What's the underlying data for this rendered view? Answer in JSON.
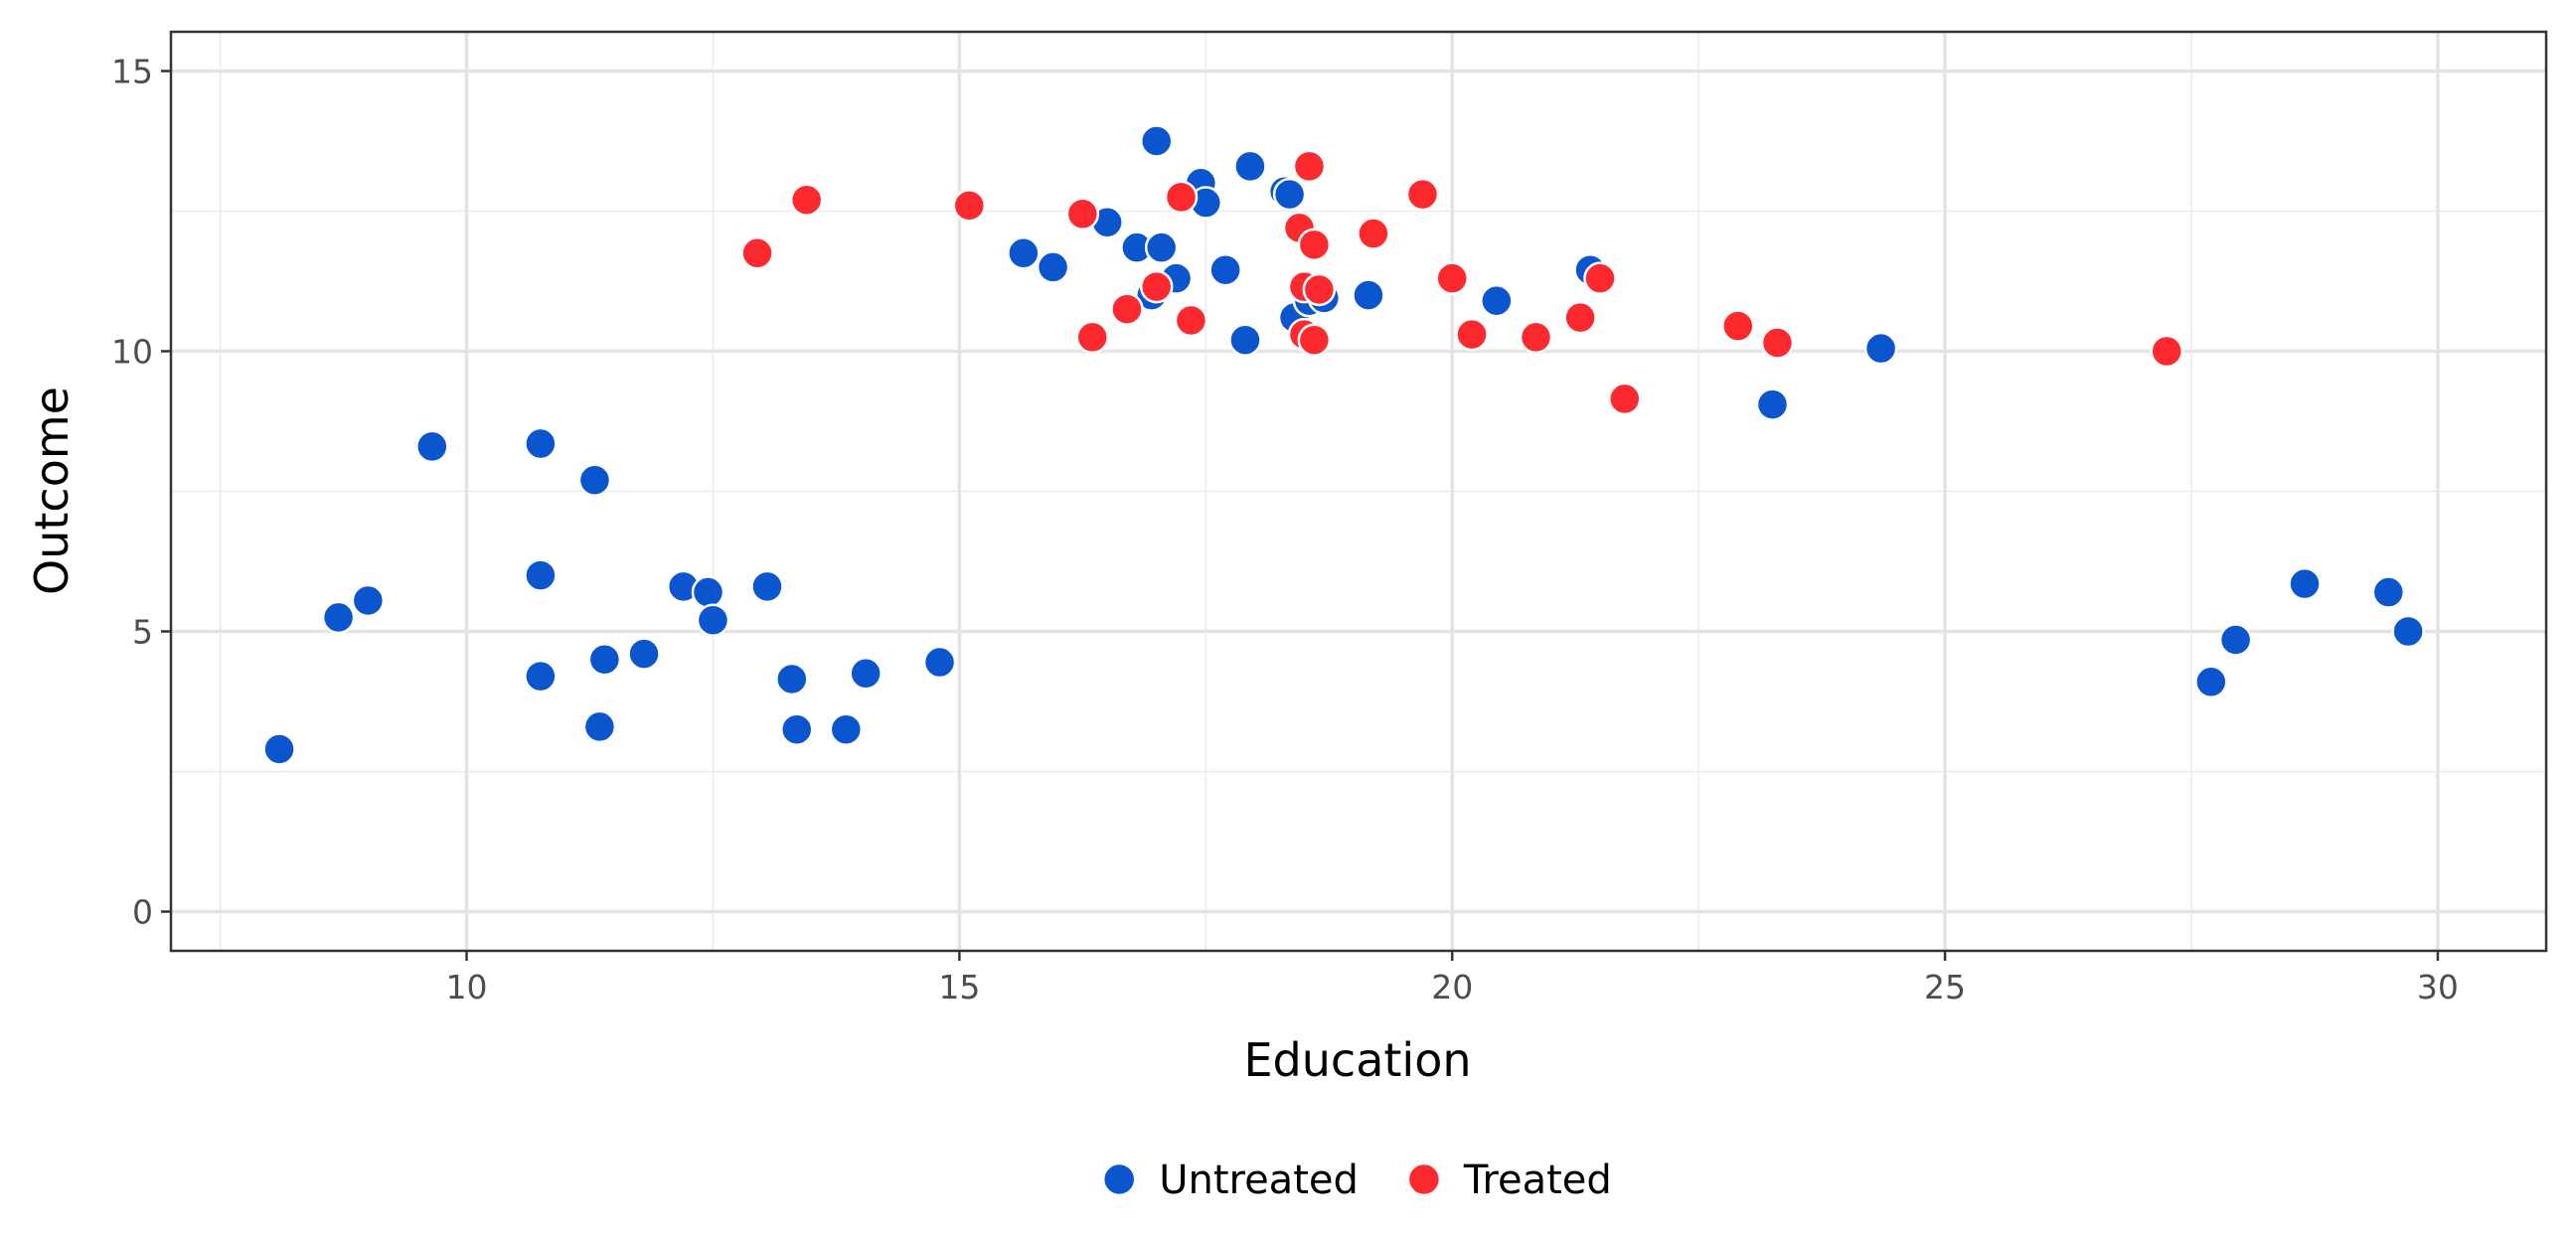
{
  "chart_data": {
    "type": "scatter",
    "title": "",
    "xlabel": "Education",
    "ylabel": "Outcome",
    "xlim": [
      7.0,
      31.1
    ],
    "ylim": [
      -0.7,
      15.7
    ],
    "xticks": [
      "10",
      "15",
      "20",
      "25",
      "30"
    ],
    "yticks": [
      "0",
      "5",
      "10",
      "15"
    ],
    "grid": true,
    "legend_position": "bottom",
    "series": [
      {
        "name": "Untreated",
        "color": "#0b56cf",
        "points": [
          [
            8.1,
            2.9
          ],
          [
            8.7,
            5.25
          ],
          [
            9.0,
            5.55
          ],
          [
            9.65,
            8.3
          ],
          [
            10.75,
            8.35
          ],
          [
            10.75,
            6.0
          ],
          [
            10.75,
            4.2
          ],
          [
            11.3,
            7.7
          ],
          [
            11.35,
            3.3
          ],
          [
            11.4,
            4.5
          ],
          [
            11.8,
            4.6
          ],
          [
            12.2,
            5.8
          ],
          [
            12.45,
            5.7
          ],
          [
            12.5,
            5.2
          ],
          [
            13.05,
            5.8
          ],
          [
            13.3,
            4.15
          ],
          [
            13.35,
            3.25
          ],
          [
            13.85,
            3.25
          ],
          [
            14.05,
            4.25
          ],
          [
            14.8,
            4.45
          ],
          [
            15.65,
            11.75
          ],
          [
            15.95,
            11.5
          ],
          [
            16.5,
            12.3
          ],
          [
            16.8,
            11.85
          ],
          [
            16.95,
            11.0
          ],
          [
            17.0,
            13.75
          ],
          [
            17.05,
            11.85
          ],
          [
            17.2,
            11.3
          ],
          [
            17.45,
            13.0
          ],
          [
            17.5,
            12.65
          ],
          [
            17.7,
            11.45
          ],
          [
            17.9,
            10.2
          ],
          [
            17.95,
            13.3
          ],
          [
            18.3,
            12.85
          ],
          [
            18.35,
            12.8
          ],
          [
            18.4,
            10.6
          ],
          [
            18.55,
            10.9
          ],
          [
            18.7,
            10.95
          ],
          [
            19.15,
            11.0
          ],
          [
            20.45,
            10.9
          ],
          [
            21.4,
            11.45
          ],
          [
            23.25,
            9.05
          ],
          [
            24.35,
            10.05
          ],
          [
            27.7,
            4.1
          ],
          [
            27.95,
            4.85
          ],
          [
            28.65,
            5.85
          ],
          [
            29.5,
            5.7
          ],
          [
            29.7,
            5.0
          ]
        ]
      },
      {
        "name": "Treated",
        "color": "#fc2a2f",
        "points": [
          [
            12.95,
            11.75
          ],
          [
            13.45,
            12.7
          ],
          [
            15.1,
            12.6
          ],
          [
            16.25,
            12.45
          ],
          [
            16.35,
            10.25
          ],
          [
            16.7,
            10.75
          ],
          [
            17.0,
            11.15
          ],
          [
            17.25,
            12.75
          ],
          [
            17.35,
            10.55
          ],
          [
            18.45,
            12.2
          ],
          [
            18.5,
            10.3
          ],
          [
            18.5,
            11.15
          ],
          [
            18.55,
            13.3
          ],
          [
            18.6,
            11.9
          ],
          [
            18.6,
            10.2
          ],
          [
            18.65,
            11.1
          ],
          [
            19.2,
            12.1
          ],
          [
            19.7,
            12.8
          ],
          [
            20.0,
            11.3
          ],
          [
            20.2,
            10.3
          ],
          [
            20.85,
            10.25
          ],
          [
            21.3,
            10.6
          ],
          [
            21.5,
            11.3
          ],
          [
            21.75,
            9.15
          ],
          [
            22.9,
            10.45
          ],
          [
            23.3,
            10.15
          ],
          [
            27.25,
            10.0
          ]
        ]
      }
    ]
  }
}
